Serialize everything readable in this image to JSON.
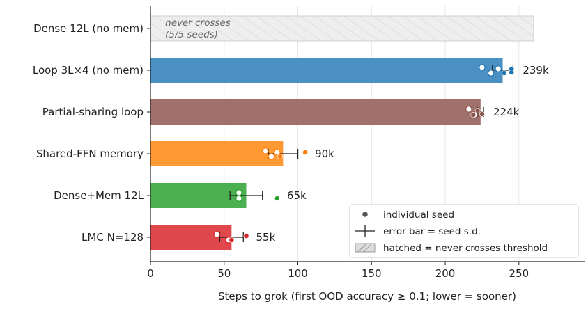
{
  "chart_data": {
    "type": "bar",
    "orientation": "horizontal",
    "xlabel": "Steps to grok (first OOD accuracy ≥ 0.1; lower = sooner)",
    "xlim": [
      0,
      295
    ],
    "xticks": [
      0,
      50,
      100,
      150,
      200,
      250
    ],
    "grid": "vertical",
    "legend_position": "lower-right",
    "legend": [
      {
        "label": "individual seed",
        "marker": "dot"
      },
      {
        "label": "error bar = seed s.d.",
        "marker": "errorbar"
      },
      {
        "label": "hatched = never crosses threshold",
        "marker": "hatch"
      }
    ],
    "categories": [
      "Dense 12L (no mem)",
      "Loop 3L×4 (no mem)",
      "Partial-sharing loop",
      "Shared-FFN memory",
      "Dense+Mem 12L",
      "LMC N=128"
    ],
    "bars": [
      {
        "category": "Dense 12L (no mem)",
        "value": 260,
        "never_crosses": true,
        "annotation_line1": "never crosses",
        "annotation_line2": "(5/5 seeds)",
        "color": "#eeeeee",
        "seeds_open": [],
        "seeds_filled": []
      },
      {
        "category": "Loop 3L×4 (no mem)",
        "value": 239,
        "label": "239k",
        "sd": 7,
        "color": "#4a90c2",
        "seed_color": "#1f77b4",
        "seeds_open": [
          225,
          231,
          236
        ],
        "seeds_filled": [
          240,
          245,
          245
        ]
      },
      {
        "category": "Partial-sharing loop",
        "value": 224,
        "label": "224k",
        "sd": 2,
        "color": "#a0706a",
        "seed_color": "#8c564b",
        "seeds_open": [
          216,
          220
        ],
        "seeds_filled": [
          219,
          222,
          225
        ]
      },
      {
        "category": "Shared-FFN memory",
        "value": 90,
        "label": "90k",
        "sd": 10,
        "color": "#ff9933",
        "seed_color": "#ff7f0e",
        "seeds_open": [
          78,
          82,
          86
        ],
        "seeds_filled": [
          88,
          105
        ]
      },
      {
        "category": "Dense+Mem 12L",
        "value": 65,
        "label": "65k",
        "sd": 11,
        "color": "#4caf50",
        "seed_color": "#2ca02c",
        "seeds_open": [
          60,
          60
        ],
        "seeds_filled": [
          86
        ]
      },
      {
        "category": "LMC N=128",
        "value": 55,
        "label": "55k",
        "sd": 8,
        "color": "#e0474c",
        "seed_color": "#d62728",
        "seeds_open": [
          45,
          53
        ],
        "seeds_filled": [
          55,
          65
        ]
      }
    ]
  }
}
